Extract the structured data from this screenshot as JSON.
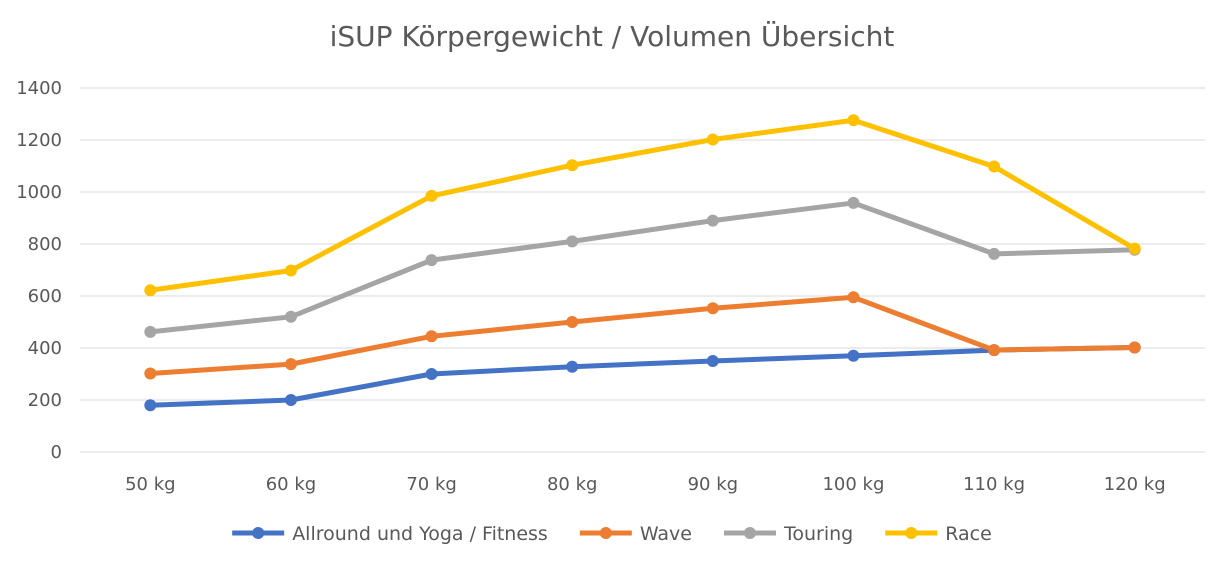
{
  "chart_data": {
    "type": "line",
    "title": "iSUP Körpergewicht / Volumen Übersicht",
    "xlabel": "",
    "ylabel": "",
    "categories": [
      "50 kg",
      "60 kg",
      "70 kg",
      "80 kg",
      "90 kg",
      "100 kg",
      "110 kg",
      "120 kg"
    ],
    "ylim": [
      0,
      1400
    ],
    "yticks": [
      0,
      200,
      400,
      600,
      800,
      1000,
      1200,
      1400
    ],
    "grid": true,
    "legend_position": "bottom",
    "series": [
      {
        "name": "Allround und Yoga / Fitness",
        "color": "#4472C4",
        "values": [
          180,
          200,
          300,
          328,
          350,
          370,
          392,
          402
        ]
      },
      {
        "name": "Wave",
        "color": "#ED7D31",
        "values": [
          302,
          338,
          445,
          500,
          553,
          595,
          392,
          402
        ]
      },
      {
        "name": "Touring",
        "color": "#A5A5A5",
        "values": [
          462,
          520,
          738,
          810,
          890,
          958,
          762,
          778
        ]
      },
      {
        "name": "Race",
        "color": "#FFC000",
        "values": [
          622,
          698,
          985,
          1103,
          1202,
          1276,
          1098,
          782
        ]
      }
    ]
  }
}
